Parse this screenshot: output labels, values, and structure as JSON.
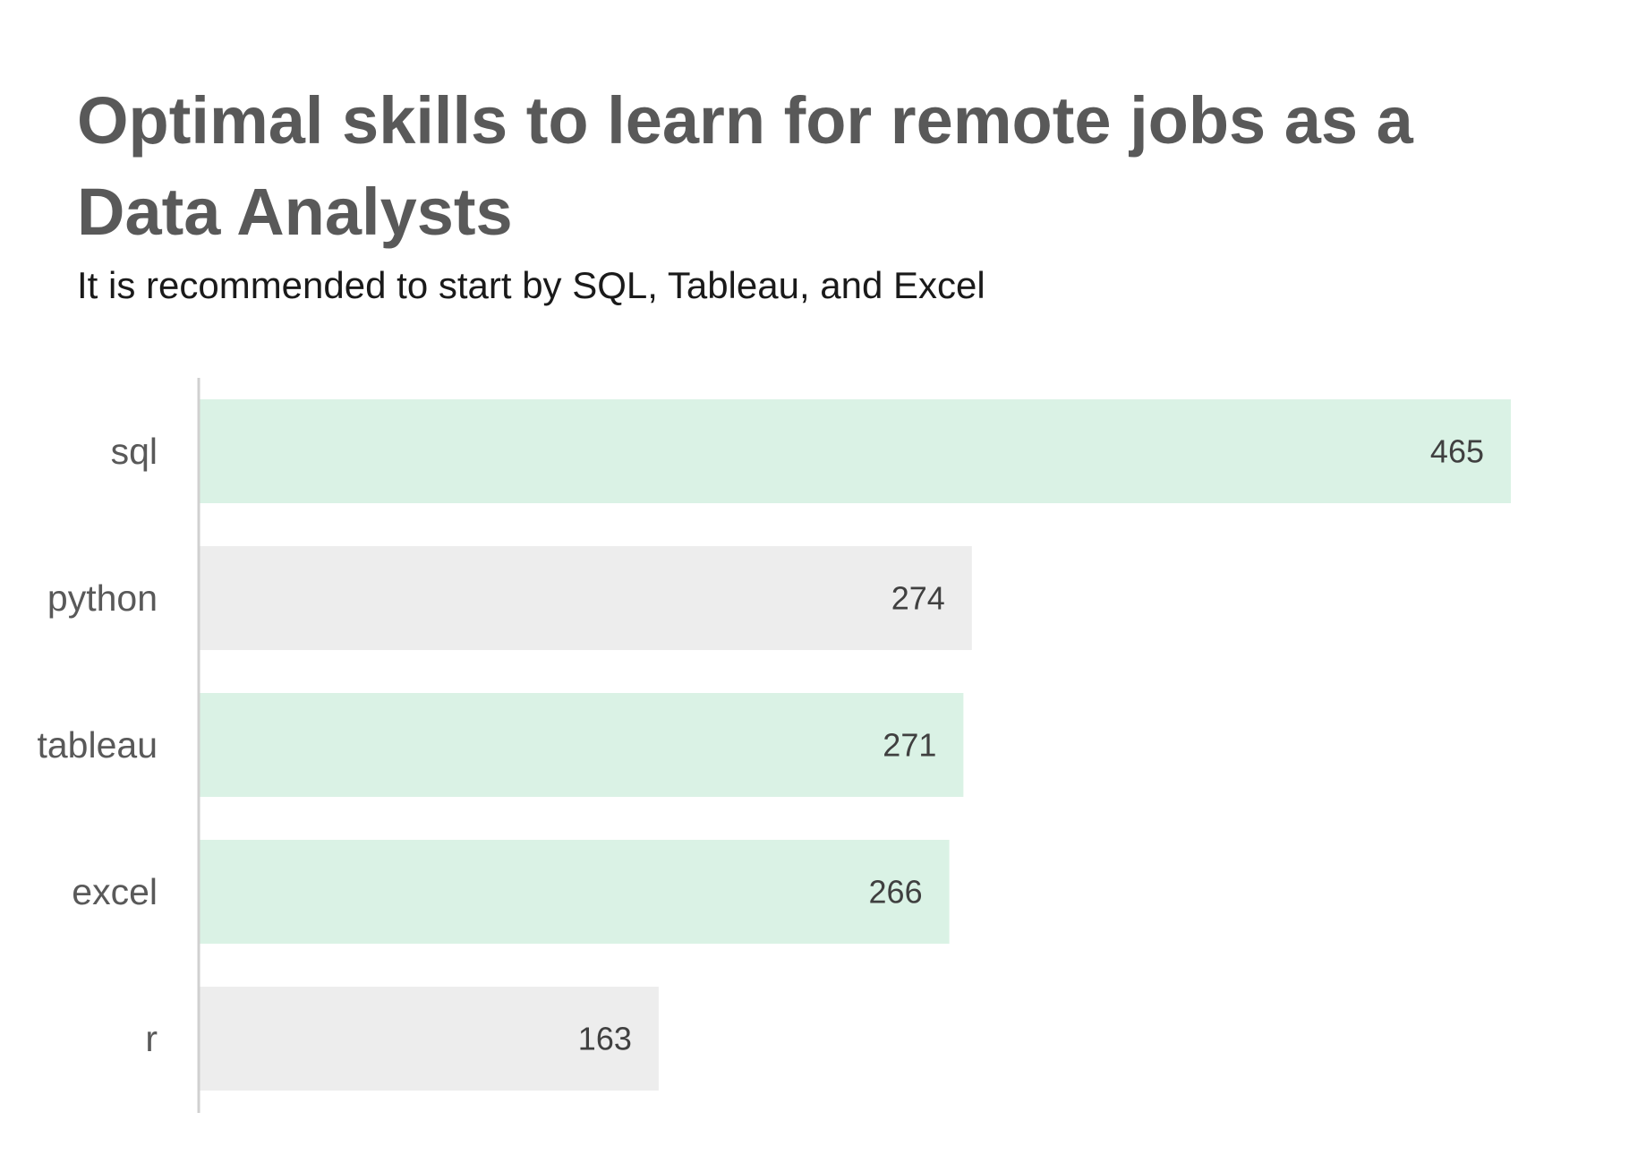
{
  "colors": {
    "highlight": "#daf2e5",
    "muted": "#ededed",
    "axis": "#d0d0d0"
  },
  "chart_data": {
    "type": "bar",
    "orientation": "horizontal",
    "title": "Optimal skills to learn for remote jobs as a Data Analysts",
    "subtitle": "It is recommended to start by SQL, Tableau, and Excel",
    "categories": [
      "sql",
      "python",
      "tableau",
      "excel",
      "r"
    ],
    "values": [
      465,
      274,
      271,
      266,
      163
    ],
    "highlighted": [
      "sql",
      "tableau",
      "excel"
    ],
    "data_labels": [
      "465",
      "274",
      "271",
      "266",
      "163"
    ],
    "xlim": [
      0,
      500
    ],
    "grid": false,
    "legend": "none"
  }
}
